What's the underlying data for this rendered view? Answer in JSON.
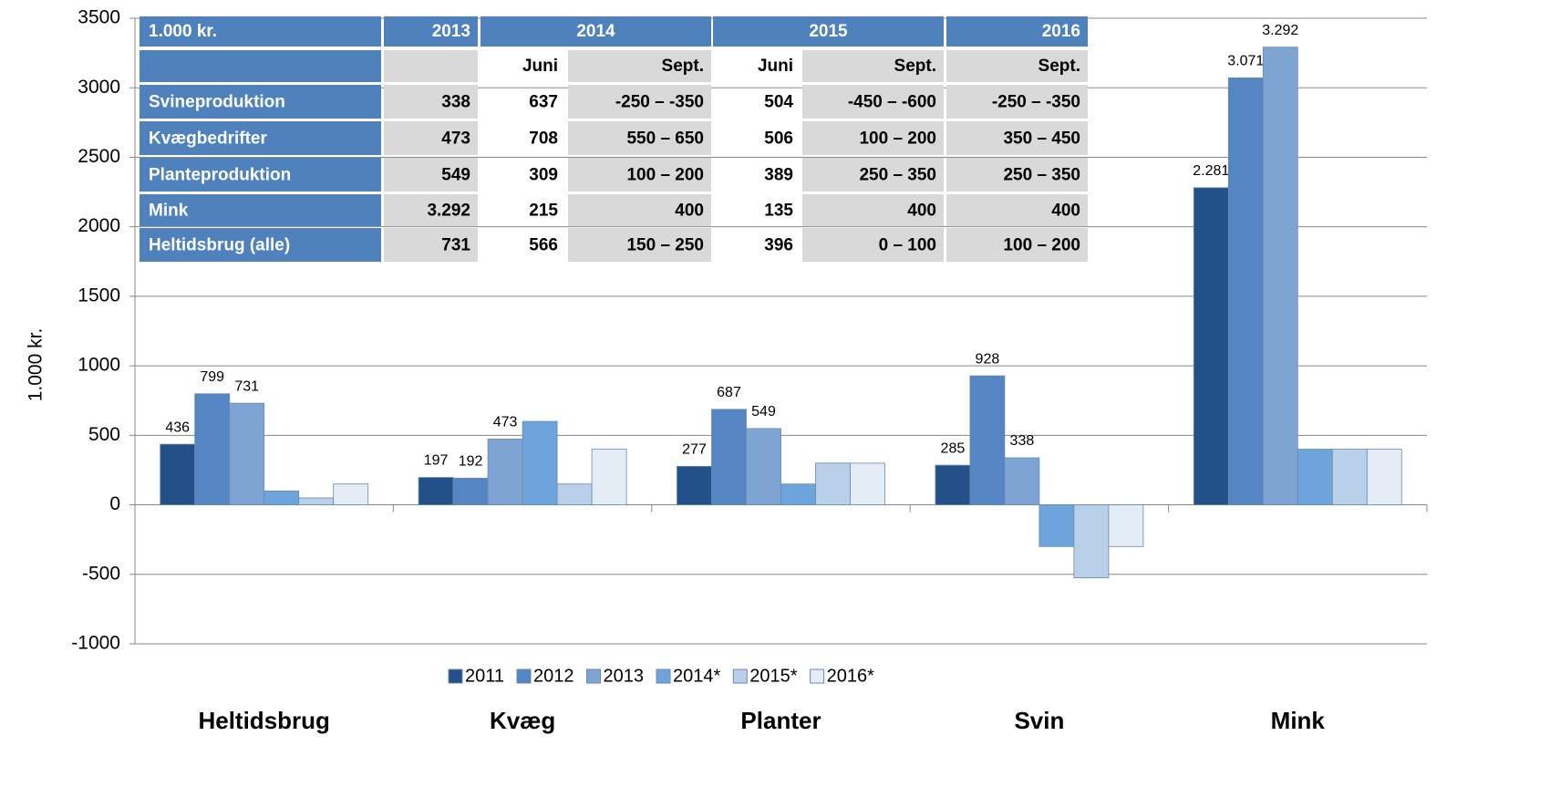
{
  "chart_data": {
    "type": "bar",
    "y_label": "1.000 kr.",
    "categories": [
      "Heltidsbrug",
      "Kvæg",
      "Planter",
      "Svin",
      "Mink"
    ],
    "series": [
      {
        "name": "2011",
        "color": "#24508a",
        "values": [
          436,
          197,
          277,
          285,
          2281
        ],
        "value_labels": [
          "436",
          "197",
          "277",
          "285",
          "2.281"
        ]
      },
      {
        "name": "2012",
        "color": "#5585c2",
        "values": [
          799,
          192,
          687,
          928,
          3071
        ],
        "value_labels": [
          "799",
          "192",
          "687",
          "928",
          "3.071"
        ]
      },
      {
        "name": "2013",
        "color": "#7ea4d3",
        "values": [
          731,
          473,
          549,
          338,
          3292
        ],
        "value_labels": [
          "731",
          "473",
          "549",
          "338",
          "3.292"
        ]
      },
      {
        "name": "2014*",
        "color": "#6ea4dc",
        "values": [
          100,
          600,
          150,
          -300,
          400
        ]
      },
      {
        "name": "2015*",
        "color": "#b8d0ea",
        "values": [
          50,
          150,
          300,
          -525,
          400
        ]
      },
      {
        "name": "2016*",
        "color": "#e4ecf6",
        "values": [
          150,
          400,
          300,
          -300,
          400
        ]
      }
    ],
    "ylim": [
      -1000,
      3500
    ],
    "yticks": [
      -1000,
      -500,
      0,
      500,
      1000,
      1500,
      2000,
      2500,
      3000,
      3500
    ],
    "grid": true,
    "legend": "bottom",
    "table": {
      "header": [
        "1.000 kr.",
        "2013",
        "2014",
        "2015",
        "2016"
      ],
      "subheader": [
        null,
        null,
        "Juni",
        "Sept.",
        "Juni",
        "Sept.",
        "Sept."
      ],
      "rows": [
        [
          "Svineproduktion",
          "338",
          "637",
          "-250 – -350",
          "504",
          "-450 – -600",
          "-250 – -350"
        ],
        [
          "Kvægbedrifter",
          "473",
          "708",
          "550 – 650",
          "506",
          "100 – 200",
          "350 – 450"
        ],
        [
          "Planteproduktion",
          "549",
          "309",
          "100 – 200",
          "389",
          "250 – 350",
          "250 – 350"
        ],
        [
          "Mink",
          "3.292",
          "215",
          "400",
          "135",
          "400",
          "400"
        ],
        [
          "Heltidsbrug (alle)",
          "731",
          "566",
          "150 – 250",
          "396",
          "0 – 100",
          "100 – 200"
        ]
      ]
    }
  }
}
